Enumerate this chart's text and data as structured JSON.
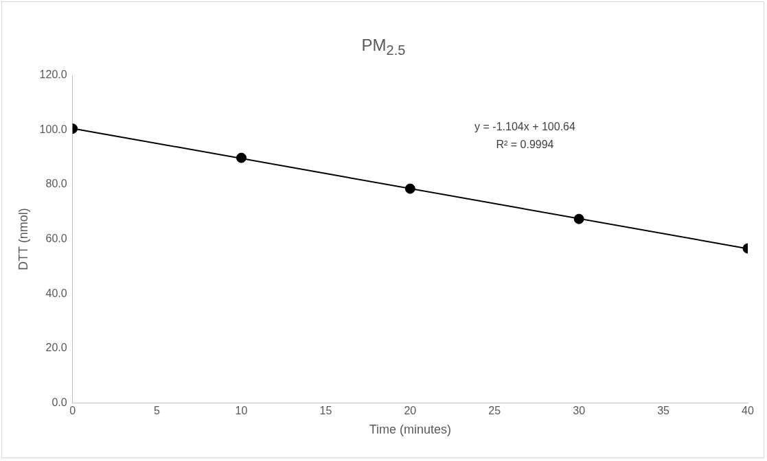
{
  "chart_data": {
    "type": "scatter",
    "title": "PM$_{2.5}$",
    "xlabel": "Time (minutes)",
    "ylabel": "DTT (nmol)",
    "xlim": [
      0,
      40
    ],
    "xticks": [
      0,
      5,
      10,
      15,
      20,
      25,
      30,
      35,
      40
    ],
    "ylim": [
      0,
      120
    ],
    "yticks": [
      {
        "value": 0,
        "label": "0.0"
      },
      {
        "value": 20,
        "label": "20.0"
      },
      {
        "value": 40,
        "label": "40.0"
      },
      {
        "value": 60,
        "label": "60.0"
      },
      {
        "value": 80,
        "label": "80.0"
      },
      {
        "value": 100,
        "label": "100.0"
      },
      {
        "value": 120,
        "label": "120.0"
      }
    ],
    "grid": false,
    "legend": false,
    "marker": "circle",
    "series": [
      {
        "type": "scatter",
        "color": "#000000",
        "x": [
          0,
          10,
          20,
          30,
          40
        ],
        "values": [
          100.5,
          89.8,
          78.5,
          67.4,
          56.6
        ]
      },
      {
        "type": "line",
        "color": "#000000",
        "x": [
          0,
          40
        ],
        "values": [
          100.6,
          56.5
        ],
        "marker": "none",
        "line_style": "solid"
      }
    ],
    "annotations": [
      "y = -1.104x + 100.64",
      "R² = 0.9994"
    ]
  }
}
